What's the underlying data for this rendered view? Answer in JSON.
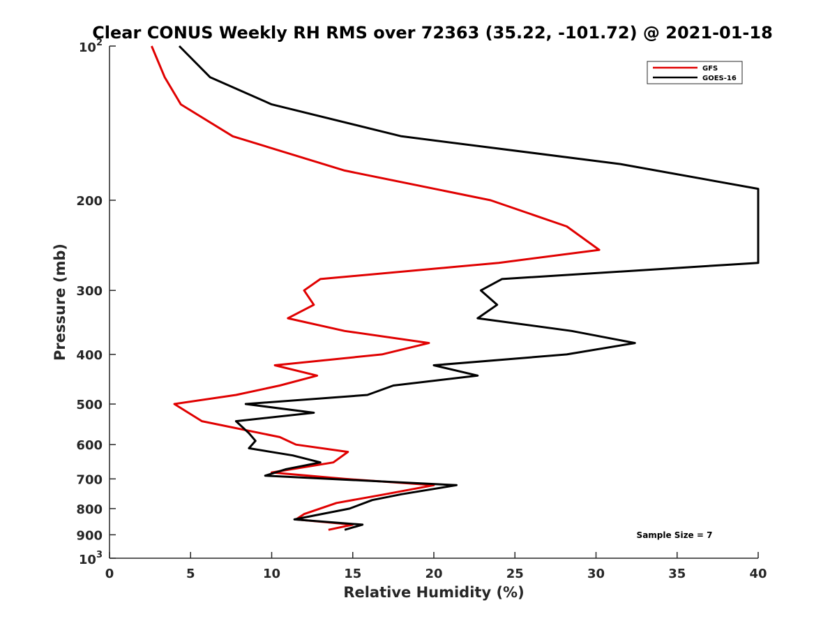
{
  "chart_data": {
    "type": "line",
    "title": "Clear CONUS Weekly RH RMS over 72363 (35.22, -101.72) @ 2021-01-18",
    "xlabel": "Relative Humidity (%)",
    "ylabel": "Pressure (mb)",
    "xlim": [
      0,
      40
    ],
    "ylim": [
      100,
      1000
    ],
    "yscale": "log",
    "y_reversed": true,
    "grid": false,
    "legend_position": "top-right",
    "x_ticks": [
      0,
      5,
      10,
      15,
      20,
      25,
      30,
      35,
      40
    ],
    "x_tick_labels": [
      "0",
      "5",
      "10",
      "15",
      "20",
      "25",
      "30",
      "35",
      "40"
    ],
    "y_ticks": [
      {
        "value": 100,
        "base": "10",
        "exp": "2"
      },
      {
        "value": 200,
        "label": "200"
      },
      {
        "value": 300,
        "label": "300"
      },
      {
        "value": 400,
        "label": "400"
      },
      {
        "value": 500,
        "label": "500"
      },
      {
        "value": 600,
        "label": "600"
      },
      {
        "value": 700,
        "label": "700"
      },
      {
        "value": 800,
        "label": "800"
      },
      {
        "value": 900,
        "label": "900"
      },
      {
        "value": 1000,
        "base": "10",
        "exp": "3"
      }
    ],
    "annotation": "Sample Size = 7",
    "series": [
      {
        "name": "GFS",
        "color": "#e00000",
        "points": [
          {
            "x": 2.6,
            "p": 100
          },
          {
            "x": 3.4,
            "p": 115
          },
          {
            "x": 4.4,
            "p": 130
          },
          {
            "x": 7.6,
            "p": 150
          },
          {
            "x": 14.5,
            "p": 175
          },
          {
            "x": 23.5,
            "p": 200
          },
          {
            "x": 28.2,
            "p": 225
          },
          {
            "x": 30.2,
            "p": 250
          },
          {
            "x": 24.0,
            "p": 265
          },
          {
            "x": 13.0,
            "p": 285
          },
          {
            "x": 12.0,
            "p": 300
          },
          {
            "x": 12.6,
            "p": 320
          },
          {
            "x": 11.0,
            "p": 340
          },
          {
            "x": 14.5,
            "p": 360
          },
          {
            "x": 19.7,
            "p": 380
          },
          {
            "x": 16.8,
            "p": 400
          },
          {
            "x": 10.2,
            "p": 420
          },
          {
            "x": 12.8,
            "p": 440
          },
          {
            "x": 10.5,
            "p": 460
          },
          {
            "x": 7.8,
            "p": 480
          },
          {
            "x": 4.0,
            "p": 500
          },
          {
            "x": 5.7,
            "p": 540
          },
          {
            "x": 10.5,
            "p": 580
          },
          {
            "x": 11.5,
            "p": 600
          },
          {
            "x": 14.7,
            "p": 620
          },
          {
            "x": 13.8,
            "p": 650
          },
          {
            "x": 10.0,
            "p": 680
          },
          {
            "x": 14.5,
            "p": 700
          },
          {
            "x": 20.0,
            "p": 720
          },
          {
            "x": 17.0,
            "p": 750
          },
          {
            "x": 14.0,
            "p": 780
          },
          {
            "x": 12.0,
            "p": 820
          },
          {
            "x": 11.5,
            "p": 840
          },
          {
            "x": 15.0,
            "p": 860
          },
          {
            "x": 13.5,
            "p": 880
          }
        ]
      },
      {
        "name": "GOES-16",
        "color": "#000000",
        "points": [
          {
            "x": 4.3,
            "p": 100
          },
          {
            "x": 6.2,
            "p": 115
          },
          {
            "x": 10.0,
            "p": 130
          },
          {
            "x": 18.0,
            "p": 150
          },
          {
            "x": 31.5,
            "p": 170
          },
          {
            "x": 40.0,
            "p": 190
          },
          {
            "x": 40.0,
            "p": 265
          },
          {
            "x": 24.2,
            "p": 285
          },
          {
            "x": 22.9,
            "p": 300
          },
          {
            "x": 23.9,
            "p": 320
          },
          {
            "x": 22.7,
            "p": 340
          },
          {
            "x": 28.5,
            "p": 360
          },
          {
            "x": 32.4,
            "p": 380
          },
          {
            "x": 28.2,
            "p": 400
          },
          {
            "x": 20.0,
            "p": 420
          },
          {
            "x": 22.7,
            "p": 440
          },
          {
            "x": 17.5,
            "p": 460
          },
          {
            "x": 15.9,
            "p": 480
          },
          {
            "x": 8.4,
            "p": 500
          },
          {
            "x": 12.6,
            "p": 520
          },
          {
            "x": 7.8,
            "p": 540
          },
          {
            "x": 8.6,
            "p": 570
          },
          {
            "x": 9.0,
            "p": 590
          },
          {
            "x": 8.6,
            "p": 610
          },
          {
            "x": 11.3,
            "p": 630
          },
          {
            "x": 13.0,
            "p": 650
          },
          {
            "x": 10.9,
            "p": 670
          },
          {
            "x": 9.6,
            "p": 690
          },
          {
            "x": 21.4,
            "p": 720
          },
          {
            "x": 18.0,
            "p": 750
          },
          {
            "x": 16.2,
            "p": 770
          },
          {
            "x": 14.8,
            "p": 800
          },
          {
            "x": 11.4,
            "p": 840
          },
          {
            "x": 15.6,
            "p": 860
          },
          {
            "x": 14.5,
            "p": 880
          }
        ]
      }
    ]
  }
}
